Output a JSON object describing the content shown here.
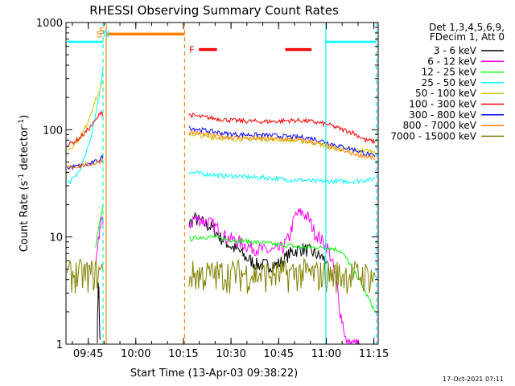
{
  "chart_data": {
    "type": "line",
    "title": "RHESSI Observing Summary Count Rates",
    "xlabel": "Start Time (13-Apr-03 09:38:22)",
    "ylabel": "Count Rate (s",
    "ylabel_sup1": "-1",
    "ylabel_mid": " detector",
    "ylabel_sup2": "-1",
    "ylabel_end": ")",
    "y_scale": "log",
    "ylim": [
      1,
      1000
    ],
    "xlim_minutes": [
      -0.37,
      98.0
    ],
    "x_tick_labels": [
      "09:45",
      "10:00",
      "10:15",
      "10:30",
      "10:45",
      "11:00",
      "11:15"
    ],
    "y_tick_labels": [
      "1",
      "10",
      "100",
      "1000"
    ],
    "legend_header": [
      "Det 1,3,4,5,6,9,",
      "FDecim 1, Att 0"
    ],
    "series": [
      {
        "name": "3 - 6 keV",
        "color": "#000000",
        "x": [
          9.5,
          9.7,
          9.8,
          9.9,
          10.0,
          10.1,
          10.2,
          10.4,
          38.4,
          40,
          42,
          44,
          46,
          48,
          50,
          52,
          54,
          56,
          58,
          60,
          62,
          64,
          66,
          68,
          70,
          72,
          74,
          76,
          78,
          80,
          82
        ],
        "y": [
          1.2,
          2.5,
          3.5,
          2.8,
          3.2,
          2.0,
          1.4,
          1.1,
          13,
          15,
          14,
          13,
          12,
          10,
          9,
          8,
          7.5,
          6.5,
          6,
          5.5,
          5.5,
          5.5,
          5.5,
          6,
          7,
          7.5,
          7.8,
          7.5,
          7,
          6.5,
          6
        ]
      },
      {
        "name": "6 - 12 keV",
        "color": "#ff00ff",
        "x": [
          9.0,
          9.5,
          9.9,
          10.3,
          10.7,
          11.0,
          11.3,
          38.4,
          40,
          42,
          44,
          46,
          48,
          50,
          52,
          54,
          56,
          58,
          60,
          62,
          64,
          66,
          68,
          70,
          72,
          74,
          76,
          78,
          80,
          82,
          84,
          86,
          88,
          90,
          92
        ],
        "y": [
          5,
          7,
          9,
          12,
          15,
          14,
          13,
          13,
          15,
          14.5,
          14,
          13,
          11.5,
          10,
          9.5,
          9,
          8.5,
          8,
          7.8,
          7.5,
          7.4,
          7.5,
          8,
          10,
          16,
          17,
          15,
          11,
          9.5,
          8,
          5,
          2,
          1,
          1,
          1
        ]
      },
      {
        "name": "12 - 25 keV",
        "color": "#00ff00",
        "x": [
          9.0,
          9.5,
          10.0,
          10.5,
          11.0,
          11.3,
          38.4,
          42,
          46,
          50,
          54,
          58,
          62,
          66,
          70,
          74,
          78,
          82,
          86,
          90,
          94,
          97
        ],
        "y": [
          8,
          10,
          12,
          15,
          18,
          20,
          9.5,
          10,
          10,
          9.5,
          9.3,
          9,
          8.8,
          8.5,
          8.3,
          8,
          8,
          8,
          7.5,
          5,
          3,
          2
        ]
      },
      {
        "name": "25 - 50 keV",
        "color": "#00ffff",
        "x": [
          0,
          1,
          2,
          3,
          4,
          5,
          6,
          7,
          8,
          9,
          10,
          10.5,
          11,
          11.3,
          38.4,
          42,
          46,
          50,
          54,
          58,
          62,
          66,
          70,
          74,
          78,
          82,
          86,
          90,
          94,
          97
        ],
        "y": [
          32,
          33,
          35,
          38,
          42,
          50,
          60,
          75,
          100,
          140,
          200,
          260,
          320,
          370,
          40,
          39,
          38,
          37,
          37,
          36,
          36,
          35,
          34,
          34,
          33,
          33,
          33,
          33,
          34,
          35
        ]
      },
      {
        "name": "50 - 100 keV",
        "color": "#c8c800",
        "x": [
          0,
          1,
          2,
          3,
          4,
          5,
          6,
          7,
          8,
          9,
          10,
          10.5,
          11,
          11.3,
          38.4,
          42,
          46,
          50,
          54,
          58,
          62,
          66,
          70,
          74,
          78,
          82,
          86,
          90,
          94,
          97
        ],
        "y": [
          65,
          68,
          72,
          78,
          85,
          95,
          110,
          130,
          160,
          190,
          220,
          250,
          270,
          280,
          92,
          88,
          85,
          83,
          82,
          82,
          82,
          81,
          80,
          78,
          75,
          70,
          66,
          64,
          64,
          63
        ]
      },
      {
        "name": "100 - 300 keV",
        "color": "#ff0000",
        "x": [
          0,
          1,
          2,
          3,
          4,
          5,
          6,
          7,
          8,
          9,
          10,
          10.5,
          11,
          11.3,
          38.4,
          42,
          46,
          50,
          54,
          58,
          62,
          66,
          70,
          74,
          78,
          82,
          86,
          90,
          94,
          97
        ],
        "y": [
          72,
          74,
          77,
          80,
          84,
          90,
          96,
          104,
          112,
          122,
          135,
          145,
          150,
          130,
          138,
          132,
          128,
          124,
          121,
          120,
          119,
          120,
          122,
          122,
          118,
          112,
          102,
          94,
          80,
          78
        ]
      },
      {
        "name": "300 - 800 keV",
        "color": "#0000ff",
        "x": [
          0,
          2,
          4,
          6,
          8,
          10,
          11,
          11.3,
          38.4,
          42,
          46,
          50,
          54,
          58,
          62,
          66,
          70,
          74,
          78,
          82,
          86,
          90,
          94,
          97
        ],
        "y": [
          44,
          45,
          46,
          47,
          49,
          52,
          55,
          58,
          105,
          100,
          96,
          92,
          90,
          90,
          89,
          88,
          86,
          85,
          82,
          76,
          70,
          66,
          60,
          56
        ]
      },
      {
        "name": "800 - 7000 keV",
        "color": "#ff8000",
        "x": [
          0,
          2,
          4,
          6,
          8,
          10,
          11,
          11.3,
          38.4,
          42,
          46,
          50,
          54,
          58,
          62,
          66,
          70,
          74,
          78,
          82,
          86,
          90,
          94,
          97
        ],
        "y": [
          45,
          45,
          46,
          47,
          48,
          50,
          52,
          54,
          95,
          92,
          88,
          85,
          84,
          83,
          82,
          82,
          81,
          80,
          76,
          70,
          64,
          60,
          57,
          54
        ]
      },
      {
        "name": "7000 - 15000 keV",
        "color": "#808000",
        "x": [
          0,
          2,
          4,
          6,
          8,
          10,
          11.3,
          38.4,
          42,
          46,
          50,
          54,
          58,
          62,
          66,
          70,
          74,
          78,
          82,
          86,
          90,
          94,
          97
        ],
        "y": [
          4.5,
          4.5,
          4.6,
          4.5,
          4.6,
          4.7,
          4.7,
          4.5,
          4.5,
          4.5,
          4.6,
          4.6,
          4.5,
          4.5,
          4.5,
          4.6,
          4.7,
          4.5,
          4.5,
          4.5,
          4.5,
          4.4,
          4.3
        ]
      }
    ],
    "bars": [
      {
        "label": "S",
        "color": "#ff8000",
        "x_start": 12.3,
        "x_end": 37.0,
        "y": 780
      },
      {
        "label": "F",
        "color": "#ff0000",
        "x_start": 41.5,
        "x_end": 47.2,
        "y": 560
      },
      {
        "label": "",
        "color": "#ff0000",
        "x_start": 68.7,
        "x_end": 77.0,
        "y": 560
      },
      {
        "label": "",
        "color": "#00ffff",
        "x_start": 0.0,
        "x_end": 11.3,
        "y": 660
      },
      {
        "label": "",
        "color": "#00ffff",
        "x_start": 81.5,
        "x_end": 97.4,
        "y": 660
      }
    ],
    "top_markers": [
      {
        "label": "S",
        "color": "#ff8000",
        "x": 11.3
      },
      {
        "label": "N",
        "color": "#00ffff",
        "x": 12.5
      }
    ],
    "vertical_lines": [
      {
        "color": "#00ffff",
        "x": 11.3,
        "style": "dashed"
      },
      {
        "color": "#ff8000",
        "x": 12.3,
        "style": "solid"
      },
      {
        "color": "#ff8000",
        "x": 37.0,
        "style": "dashed"
      },
      {
        "color": "#00ffff",
        "x": 81.5,
        "style": "solid"
      },
      {
        "color": "#00ffff",
        "x": 97.4,
        "style": "dashed"
      }
    ],
    "footer_timestamp": "17-Oct-2021 07:11"
  }
}
